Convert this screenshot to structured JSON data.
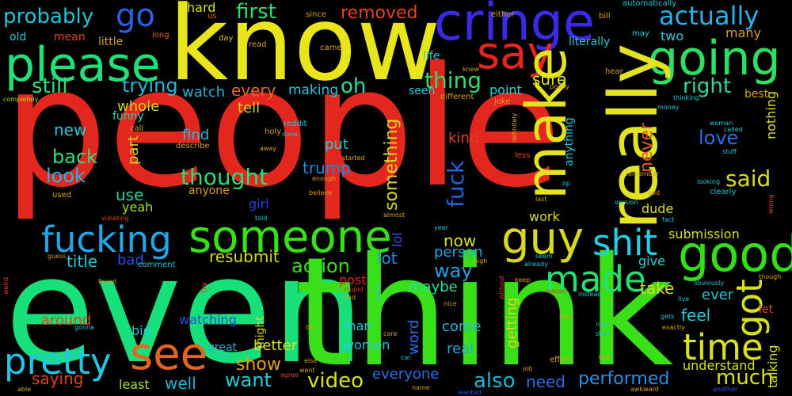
{
  "words": [
    {
      "text": "people",
      "color": "#e3261e"
    },
    {
      "text": "even",
      "color": "#17e07a"
    },
    {
      "text": "think",
      "color": "#39df18"
    },
    {
      "text": "know",
      "color": "#e8e61b"
    },
    {
      "text": "please",
      "color": "#20e07a"
    },
    {
      "text": "cringe",
      "color": "#3a2ae6"
    },
    {
      "text": "going",
      "color": "#2de063"
    },
    {
      "text": "say",
      "color": "#e8241c"
    },
    {
      "text": "really",
      "color": "#e3e421"
    },
    {
      "text": "make",
      "color": "#e4e31e"
    },
    {
      "text": "someone",
      "color": "#39e018"
    },
    {
      "text": "fucking",
      "color": "#22a6e6"
    },
    {
      "text": "guy",
      "color": "#d9d820"
    },
    {
      "text": "good",
      "color": "#35df18"
    },
    {
      "text": "shit",
      "color": "#22cfe6"
    },
    {
      "text": "made",
      "color": "#22e071"
    },
    {
      "text": "see",
      "color": "#e4641e"
    },
    {
      "text": "pretty",
      "color": "#23c7e4"
    },
    {
      "text": "time",
      "color": "#d9e01e"
    },
    {
      "text": "got",
      "color": "#d8e01d"
    },
    {
      "text": "go",
      "color": "#2b5fe6"
    },
    {
      "text": "actually",
      "color": "#2bb0e8"
    },
    {
      "text": "probably",
      "color": "#20c4d8"
    },
    {
      "text": "first",
      "color": "#22e06b"
    },
    {
      "text": "removed",
      "color": "#e0451e"
    },
    {
      "text": "hard",
      "color": "#d3e020"
    },
    {
      "text": "thing",
      "color": "#2ee06a"
    },
    {
      "text": "still",
      "color": "#2ae078"
    },
    {
      "text": "trying",
      "color": "#22b7e0"
    },
    {
      "text": "every",
      "color": "#e06a1e"
    },
    {
      "text": "oh",
      "color": "#22e0a3"
    },
    {
      "text": "making",
      "color": "#22c7e0"
    },
    {
      "text": "watch",
      "color": "#22b4d8"
    },
    {
      "text": "tell",
      "color": "#d4d620"
    },
    {
      "text": "whole",
      "color": "#d3d31e"
    },
    {
      "text": "funny",
      "color": "#22d4b0"
    },
    {
      "text": "new",
      "color": "#22c9d8"
    },
    {
      "text": "back",
      "color": "#30e07e"
    },
    {
      "text": "look",
      "color": "#22b7e6"
    },
    {
      "text": "find",
      "color": "#22bde0"
    },
    {
      "text": "thought",
      "color": "#22e07a"
    },
    {
      "text": "put",
      "color": "#22c9d8"
    },
    {
      "text": "trump",
      "color": "#2287e0"
    },
    {
      "text": "kind",
      "color": "#e0401c"
    },
    {
      "text": "something",
      "color": "#d9d820"
    },
    {
      "text": "fuck",
      "color": "#2264e0"
    },
    {
      "text": "said",
      "color": "#d8e01e"
    },
    {
      "text": "love",
      "color": "#2a6ee6"
    },
    {
      "text": "right",
      "color": "#28d8a0"
    },
    {
      "text": "sure",
      "color": "#d8e020"
    },
    {
      "text": "point",
      "color": "#22d4d8"
    },
    {
      "text": "never",
      "color": "#e05a1e"
    },
    {
      "text": "use",
      "color": "#22d4a0"
    },
    {
      "text": "yeah",
      "color": "#a3e020"
    },
    {
      "text": "part",
      "color": "#d8d81e"
    },
    {
      "text": "girl",
      "color": "#2a3de6"
    },
    {
      "text": "title",
      "color": "#22c9d8"
    },
    {
      "text": "bad",
      "color": "#2a4ee6"
    },
    {
      "text": "resubmit",
      "color": "#d4d620"
    },
    {
      "text": "action",
      "color": "#35e018"
    },
    {
      "text": "now",
      "color": "#d8e020"
    },
    {
      "text": "person",
      "color": "#22a6e0"
    },
    {
      "text": "way",
      "color": "#22a0e6"
    },
    {
      "text": "lot",
      "color": "#2a8de6"
    },
    {
      "text": "lol",
      "color": "#3a4ee6"
    },
    {
      "text": "maybe",
      "color": "#22e0a8"
    },
    {
      "text": "submission",
      "color": "#d4e020"
    },
    {
      "text": "dude",
      "color": "#d8e020"
    },
    {
      "text": "give",
      "color": "#22d4d8"
    },
    {
      "text": "take",
      "color": "#d8d81e"
    },
    {
      "text": "ever",
      "color": "#22c4d8"
    },
    {
      "text": "feel",
      "color": "#22c9d8"
    },
    {
      "text": "work",
      "color": "#d8e020"
    },
    {
      "text": "post",
      "color": "#e0291e"
    },
    {
      "text": "around",
      "color": "#e0431e"
    },
    {
      "text": "show",
      "color": "#e0a01e"
    },
    {
      "text": "better",
      "color": "#d8e020"
    },
    {
      "text": "watching",
      "color": "#2a4ee6"
    },
    {
      "text": "big",
      "color": "#22c9d8"
    },
    {
      "text": "great",
      "color": "#22b4d8"
    },
    {
      "text": "man",
      "color": "#22c9d8"
    },
    {
      "text": "come",
      "color": "#22b7e0"
    },
    {
      "text": "real",
      "color": "#22a6e0"
    },
    {
      "text": "women",
      "color": "#22c9d8"
    },
    {
      "text": "word",
      "color": "#2a6ee6"
    },
    {
      "text": "getting",
      "color": "#d8d81e"
    },
    {
      "text": "saying",
      "color": "#e0411e"
    },
    {
      "text": "least",
      "color": "#a3e020"
    },
    {
      "text": "well",
      "color": "#22b4d8"
    },
    {
      "text": "want",
      "color": "#22c9d8"
    },
    {
      "text": "video",
      "color": "#d8e020"
    },
    {
      "text": "everyone",
      "color": "#2a6ee6"
    },
    {
      "text": "also",
      "color": "#22b4d8"
    },
    {
      "text": "need",
      "color": "#2a6ee6"
    },
    {
      "text": "performed",
      "color": "#2a8de6"
    },
    {
      "text": "understand",
      "color": "#d8e020"
    },
    {
      "text": "much",
      "color": "#d8e020"
    },
    {
      "text": "talking",
      "color": "#d8e020"
    },
    {
      "text": "might",
      "color": "#d8d81e"
    },
    {
      "text": "mean",
      "color": "#e0431e"
    },
    {
      "text": "little",
      "color": "#d8a01e"
    },
    {
      "text": "old",
      "color": "#22c9d8"
    },
    {
      "text": "long",
      "color": "#e0631e"
    },
    {
      "text": "day",
      "color": "#d8c41e"
    },
    {
      "text": "us",
      "color": "#e0631e"
    },
    {
      "text": "since",
      "color": "#d8a01e"
    },
    {
      "text": "either",
      "color": "#d8a01e"
    },
    {
      "text": "bill",
      "color": "#d8a01e"
    },
    {
      "text": "automatically",
      "color": "#22c9d8"
    },
    {
      "text": "may",
      "color": "#22c9d8"
    },
    {
      "text": "many",
      "color": "#d8a01e"
    },
    {
      "text": "two",
      "color": "#22c9d8"
    },
    {
      "text": "literally",
      "color": "#22c9d8"
    },
    {
      "text": "life",
      "color": "#22c9d8"
    },
    {
      "text": "read",
      "color": "#d8a01e"
    },
    {
      "text": "came",
      "color": "#d8a01e"
    },
    {
      "text": "knew",
      "color": "#d8a01e"
    },
    {
      "text": "hear",
      "color": "#d8a01e"
    },
    {
      "text": "completely",
      "color": "#a3e020"
    },
    {
      "text": "seen",
      "color": "#22c9d8"
    },
    {
      "text": "different",
      "color": "#d8a01e"
    },
    {
      "text": "joke",
      "color": "#d8a01e"
    },
    {
      "text": "poorly",
      "color": "#d8a01e"
    },
    {
      "text": "thinking",
      "color": "#22c9d8"
    },
    {
      "text": "money",
      "color": "#22c9d8"
    },
    {
      "text": "best",
      "color": "#d8a01e"
    },
    {
      "text": "call",
      "color": "#d8a01e"
    },
    {
      "text": "holy",
      "color": "#d8a01e"
    },
    {
      "text": "reddit",
      "color": "#22c9d8"
    },
    {
      "text": "done",
      "color": "#22c9d8"
    },
    {
      "text": "describe",
      "color": "#d8a01e"
    },
    {
      "text": "away",
      "color": "#d8a01e"
    },
    {
      "text": "started",
      "color": "#d8a01e"
    },
    {
      "text": "less",
      "color": "#e0431e"
    },
    {
      "text": "anything",
      "color": "#22c9d8"
    },
    {
      "text": "definitely",
      "color": "#d8a01e"
    },
    {
      "text": "woman",
      "color": "#22c9d8"
    },
    {
      "text": "called",
      "color": "#22c9d8"
    },
    {
      "text": "stuff",
      "color": "#22c9d8"
    },
    {
      "text": "nothing",
      "color": "#d8e020"
    },
    {
      "text": "anyone",
      "color": "#d8a01e"
    },
    {
      "text": "enough",
      "color": "#d8a01e"
    },
    {
      "text": "believe",
      "color": "#d8a01e"
    },
    {
      "text": "used",
      "color": "#d8a01e"
    },
    {
      "text": "last",
      "color": "#d8a01e"
    },
    {
      "text": "op",
      "color": "#22c9d8"
    },
    {
      "text": "remember",
      "color": "#d8a01e"
    },
    {
      "text": "god",
      "color": "#d8a01e"
    },
    {
      "text": "looking",
      "color": "#22c9d8"
    },
    {
      "text": "clearly",
      "color": "#22c9d8"
    },
    {
      "text": "violating",
      "color": "#e0431e"
    },
    {
      "text": "told",
      "color": "#22c9d8"
    },
    {
      "text": "almost",
      "color": "#d8a01e"
    },
    {
      "text": "version",
      "color": "#22c9d8"
    },
    {
      "text": "fact",
      "color": "#22c9d8"
    },
    {
      "text": "wrong",
      "color": "#e0431e"
    },
    {
      "text": "year",
      "color": "#22c9d8"
    },
    {
      "text": "guess",
      "color": "#d8a01e"
    },
    {
      "text": "comment",
      "color": "#22c9d8"
    },
    {
      "text": "high",
      "color": "#d8a01e"
    },
    {
      "text": "already",
      "color": "#22c9d8"
    },
    {
      "text": "seem",
      "color": "#22c9d8"
    },
    {
      "text": "found",
      "color": "#d8a01e"
    },
    {
      "text": "try",
      "color": "#e0431e"
    },
    {
      "text": "stupid",
      "color": "#e0431e"
    },
    {
      "text": "game",
      "color": "#22c9d8"
    },
    {
      "text": "keep",
      "color": "#d8a01e"
    },
    {
      "text": "reason",
      "color": "#e0431e"
    },
    {
      "text": "instead",
      "color": "#22c9d8"
    },
    {
      "text": "without",
      "color": "#e0431e"
    },
    {
      "text": "obviously",
      "color": "#22c9d8"
    },
    {
      "text": "live",
      "color": "#22c9d8"
    },
    {
      "text": "though",
      "color": "#d8a01e"
    },
    {
      "text": "weird",
      "color": "#e0431e"
    },
    {
      "text": "end",
      "color": "#d8a01e"
    },
    {
      "text": "nice",
      "color": "#d8a01e"
    },
    {
      "text": "play",
      "color": "#d8a01e"
    },
    {
      "text": "gets",
      "color": "#22c9d8"
    },
    {
      "text": "exactly",
      "color": "#d8a01e"
    },
    {
      "text": "let",
      "color": "#e0431e"
    },
    {
      "text": "next",
      "color": "#22c9d8"
    },
    {
      "text": "stop",
      "color": "#22c9d8"
    },
    {
      "text": "gonna",
      "color": "#22c9d8"
    },
    {
      "text": "bit",
      "color": "#d8a01e"
    },
    {
      "text": "else",
      "color": "#d8a01e"
    },
    {
      "text": "care",
      "color": "#d8a01e"
    },
    {
      "text": "hate",
      "color": "#22c9d8"
    },
    {
      "text": "car",
      "color": "#22c9d8"
    },
    {
      "text": "effort",
      "color": "#d8a01e"
    },
    {
      "text": "talk",
      "color": "#d8a01e"
    },
    {
      "text": "awkward",
      "color": "#d8a01e"
    },
    {
      "text": "able",
      "color": "#d8a01e"
    },
    {
      "text": "agree",
      "color": "#e0431e"
    },
    {
      "text": "went",
      "color": "#d8a01e"
    },
    {
      "text": "name",
      "color": "#d8a01e"
    },
    {
      "text": "wanted",
      "color": "#2a4ee6"
    },
    {
      "text": "job",
      "color": "#d8a01e"
    },
    {
      "text": "another",
      "color": "#2a4ee6"
    }
  ]
}
